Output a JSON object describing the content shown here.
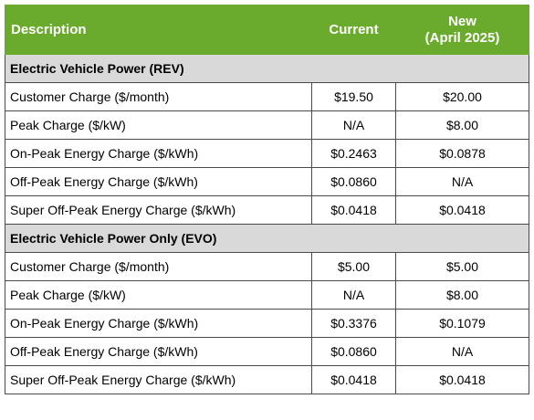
{
  "header": {
    "description": "Description",
    "current": "Current",
    "new_line1": "New",
    "new_line2": "(April 2025)"
  },
  "sections": [
    {
      "title": "Electric Vehicle Power (REV)",
      "rows": [
        {
          "label": "Customer Charge ($/month)",
          "current": "$19.50",
          "new": "$20.00"
        },
        {
          "label": "Peak Charge ($/kW)",
          "current": "N/A",
          "new": "$8.00"
        },
        {
          "label": "On-Peak Energy Charge ($/kWh)",
          "current": "$0.2463",
          "new": "$0.0878"
        },
        {
          "label": "Off-Peak Energy Charge ($/kWh)",
          "current": "$0.0860",
          "new": "N/A"
        },
        {
          "label": "Super Off-Peak Energy Charge ($/kWh)",
          "current": "$0.0418",
          "new": "$0.0418"
        }
      ]
    },
    {
      "title": "Electric Vehicle Power Only (EVO)",
      "rows": [
        {
          "label": "Customer Charge ($/month)",
          "current": "$5.00",
          "new": "$5.00"
        },
        {
          "label": "Peak Charge ($/kW)",
          "current": "N/A",
          "new": "$8.00"
        },
        {
          "label": "On-Peak Energy Charge ($/kWh)",
          "current": "$0.3376",
          "new": "$0.1079"
        },
        {
          "label": "Off-Peak Energy Charge ($/kWh)",
          "current": "$0.0860",
          "new": "N/A"
        },
        {
          "label": "Super Off-Peak Energy Charge ($/kWh)",
          "current": "$0.0418",
          "new": "$0.0418"
        }
      ]
    }
  ],
  "colors": {
    "header_bg": "#6aaa2c",
    "section_bg": "#d9d9d9"
  }
}
